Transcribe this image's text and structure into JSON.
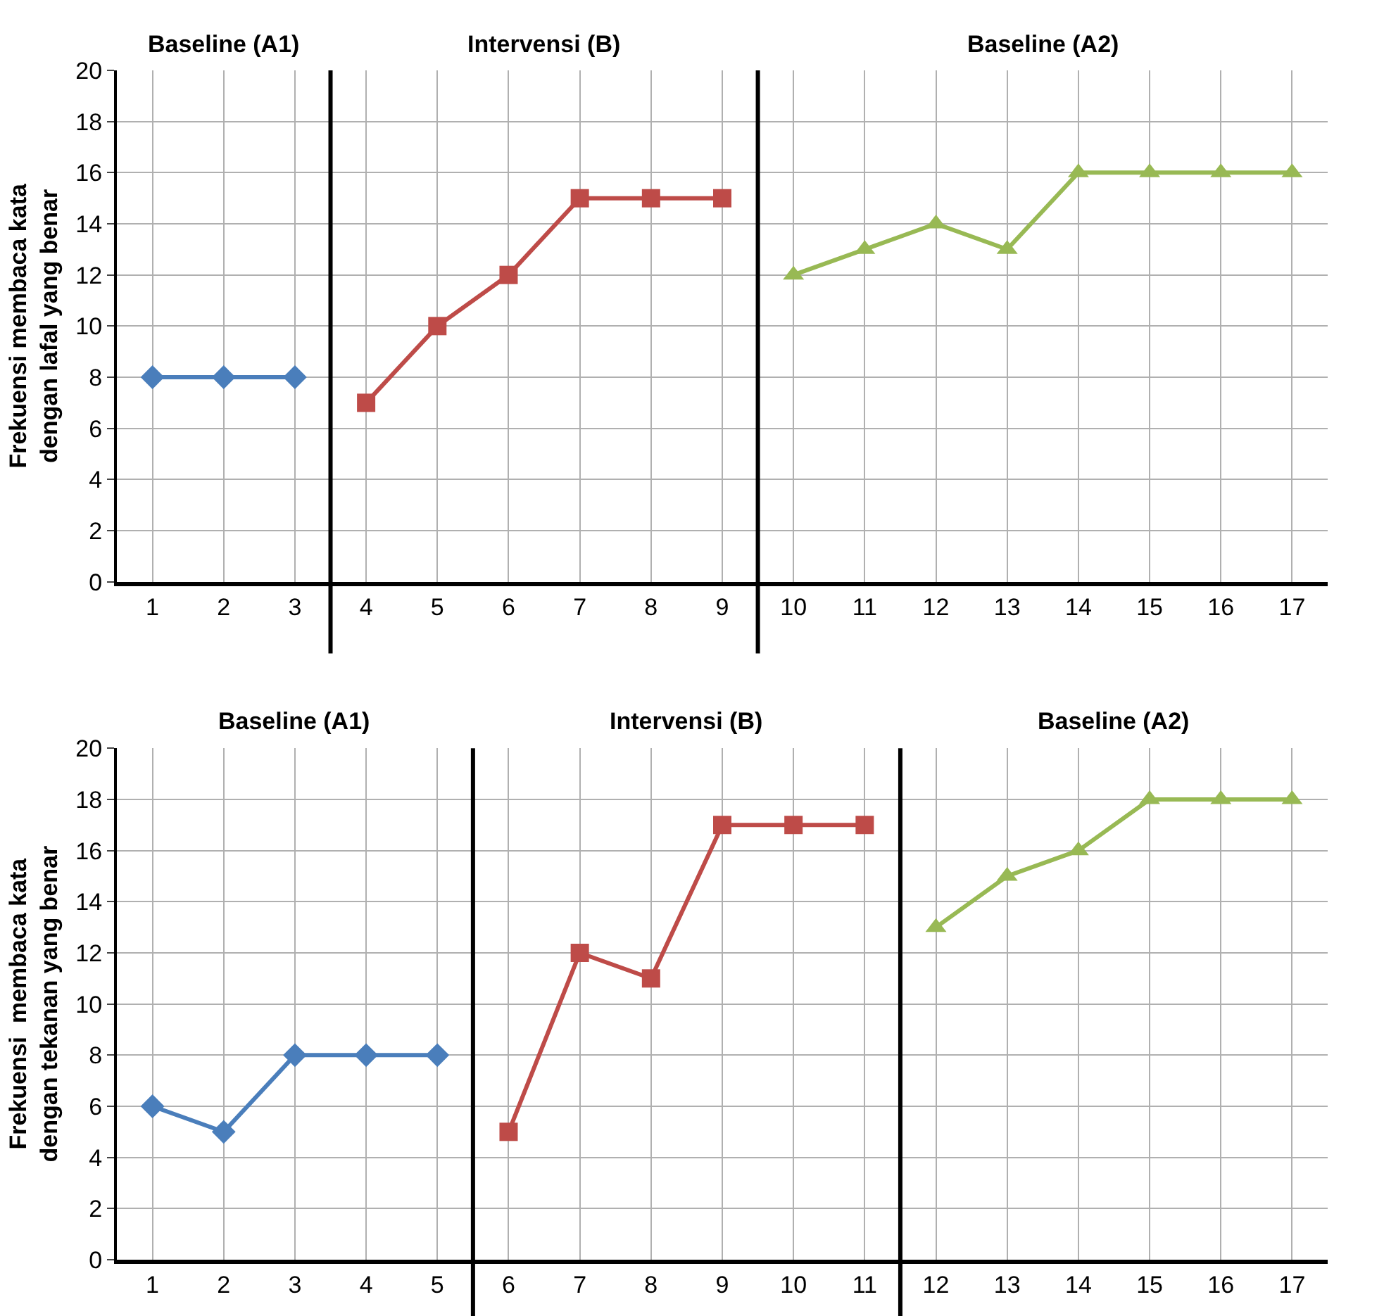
{
  "chart_data": [
    {
      "type": "line",
      "ylabel": "Frekuensi membaca kata\ndengan lafal yang benar",
      "xlim": [
        0.5,
        17.5
      ],
      "xticks": [
        1,
        2,
        3,
        4,
        5,
        6,
        7,
        8,
        9,
        10,
        11,
        12,
        13,
        14,
        15,
        16,
        17
      ],
      "ylim": [
        0,
        20
      ],
      "yticks": [
        0,
        2,
        4,
        6,
        8,
        10,
        12,
        14,
        16,
        18,
        20
      ],
      "grid": true,
      "series": [
        {
          "color": "#4a7ebb",
          "marker": "diamond",
          "x": [
            1,
            2,
            3
          ],
          "values": [
            8,
            8,
            8
          ]
        },
        {
          "color": "#be4b48",
          "marker": "square",
          "x": [
            4,
            5,
            6,
            7,
            8,
            9
          ],
          "values": [
            7,
            10,
            12,
            15,
            15,
            15
          ]
        },
        {
          "color": "#98b954",
          "marker": "triangle",
          "x": [
            10,
            11,
            12,
            13,
            14,
            15,
            16,
            17
          ],
          "values": [
            12,
            13,
            14,
            13,
            16,
            16,
            16,
            16
          ]
        }
      ],
      "ref_lines": [
        {
          "axis": "x",
          "value": 3.5,
          "color": "#000000"
        },
        {
          "axis": "x",
          "value": 9.5,
          "color": "#000000"
        }
      ],
      "annotations": [
        "Baseline (A1)",
        "Intervensi (B)",
        "Baseline (A2)"
      ]
    },
    {
      "type": "line",
      "ylabel": "Frekuensi  membaca kata\ndengan tekanan yang benar",
      "xlim": [
        0.5,
        17.5
      ],
      "xticks": [
        1,
        2,
        3,
        4,
        5,
        6,
        7,
        8,
        9,
        10,
        11,
        12,
        13,
        14,
        15,
        16,
        17
      ],
      "ylim": [
        0,
        20
      ],
      "yticks": [
        0,
        2,
        4,
        6,
        8,
        10,
        12,
        14,
        16,
        18,
        20
      ],
      "grid": true,
      "series": [
        {
          "color": "#4a7ebb",
          "marker": "diamond",
          "x": [
            1,
            2,
            3,
            4,
            5
          ],
          "values": [
            6,
            5,
            8,
            8,
            8
          ]
        },
        {
          "color": "#be4b48",
          "marker": "square",
          "x": [
            6,
            7,
            8,
            9,
            10,
            11
          ],
          "values": [
            5,
            12,
            11,
            17,
            17,
            17
          ]
        },
        {
          "color": "#98b954",
          "marker": "triangle",
          "x": [
            12,
            13,
            14,
            15,
            16,
            17
          ],
          "values": [
            13,
            15,
            16,
            18,
            18,
            18
          ]
        }
      ],
      "ref_lines": [
        {
          "axis": "x",
          "value": 5.5,
          "color": "#000000"
        },
        {
          "axis": "x",
          "value": 11.5,
          "color": "#000000"
        }
      ],
      "annotations": [
        "Baseline (A1)",
        "Intervensi (B)",
        "Baseline (A2)"
      ]
    }
  ]
}
